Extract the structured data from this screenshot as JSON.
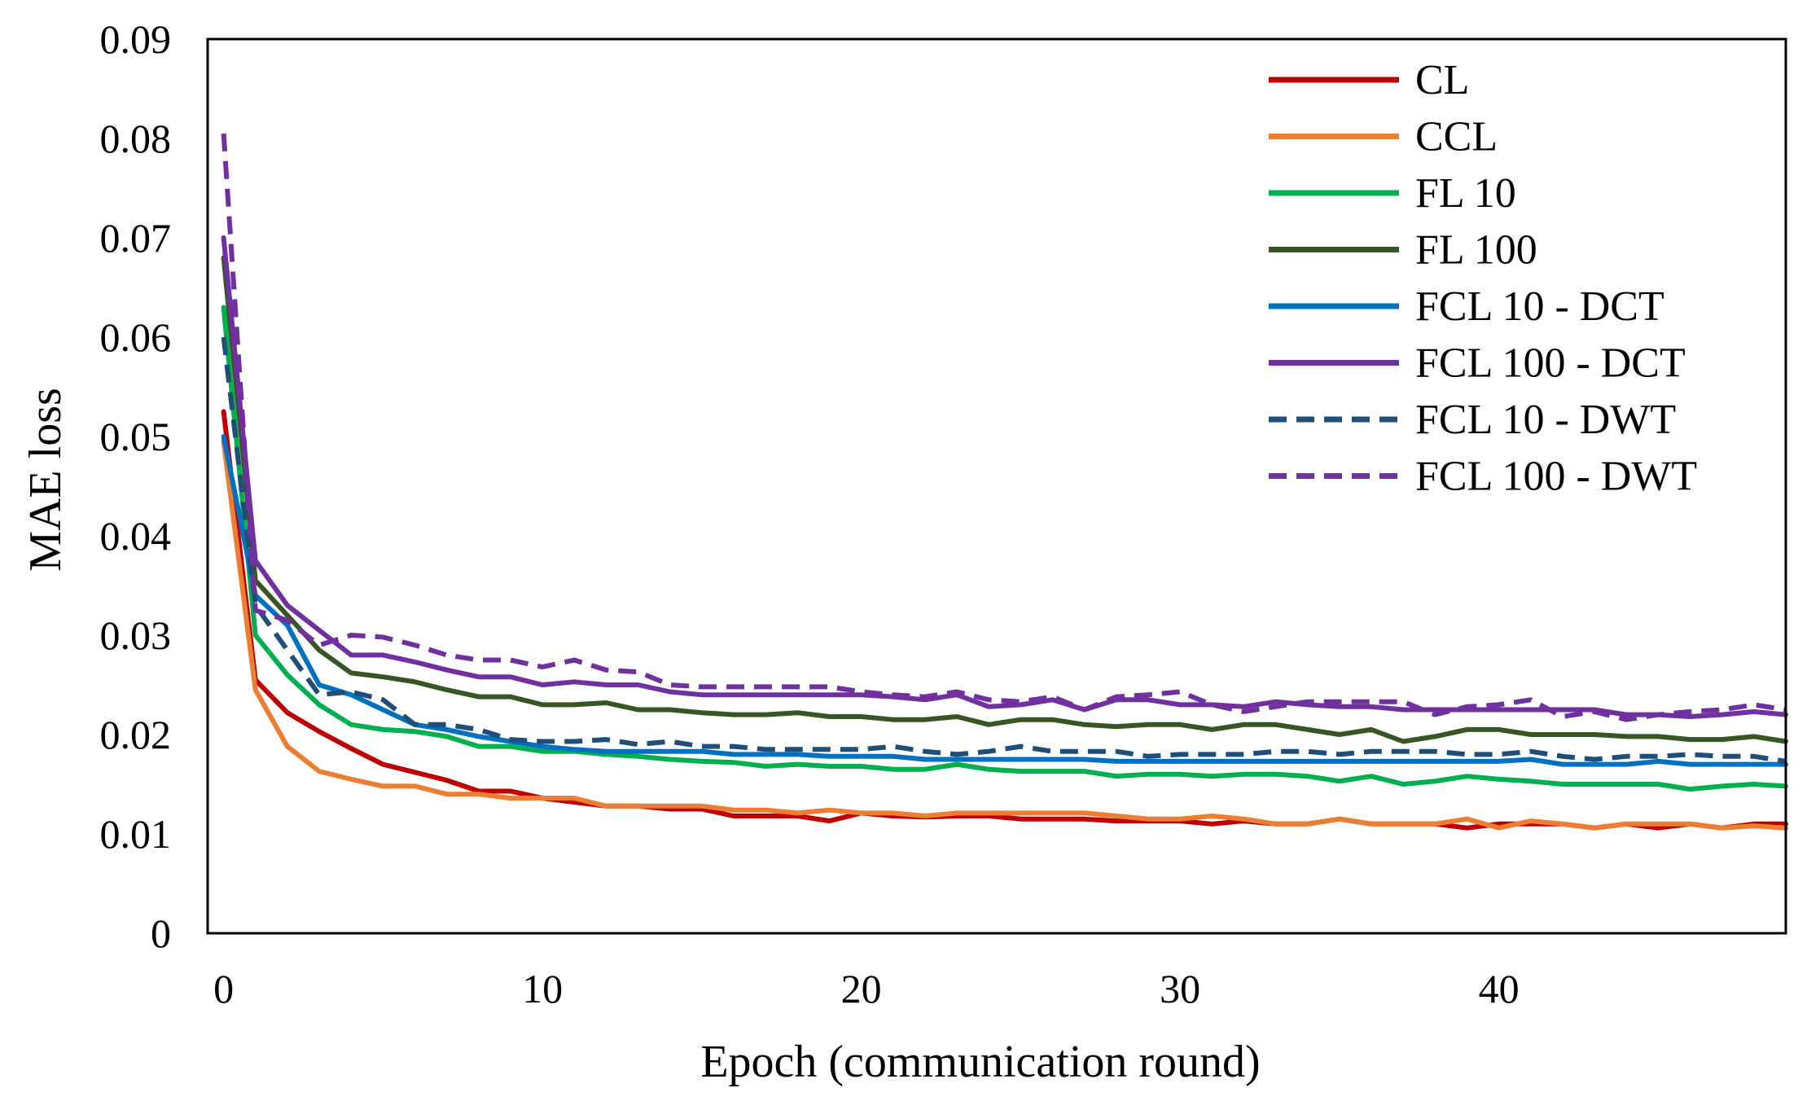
{
  "chart_data": {
    "type": "line",
    "title": "",
    "xlabel": "Epoch (communication  round)",
    "ylabel": "MAE loss",
    "xlim": [
      -0.5,
      49
    ],
    "ylim": [
      0,
      0.09
    ],
    "xticks": [
      0,
      10,
      20,
      30,
      40
    ],
    "xtick_labels": [
      "0",
      "10",
      "20",
      "30",
      "40"
    ],
    "yticks": [
      0,
      0.01,
      0.02,
      0.03,
      0.04,
      0.05,
      0.06,
      0.07,
      0.08,
      0.09
    ],
    "ytick_labels": [
      "0",
      "0.01",
      "0.02",
      "0.03",
      "0.04",
      "0.05",
      "0.06",
      "0.07",
      "0.08",
      "0.09"
    ],
    "grid": false,
    "legend_position": "top-right",
    "series": [
      {
        "name": "CL",
        "color": "#C00000",
        "dash": "solid",
        "values": [
          0.0525,
          0.0255,
          0.0222,
          0.0203,
          0.0186,
          0.017,
          0.0162,
          0.0154,
          0.0143,
          0.0143,
          0.0136,
          0.0132,
          0.0128,
          0.0128,
          0.0125,
          0.0125,
          0.0118,
          0.0118,
          0.0118,
          0.0113,
          0.0121,
          0.0118,
          0.0117,
          0.0118,
          0.0118,
          0.0115,
          0.0115,
          0.0115,
          0.0113,
          0.0113,
          0.0113,
          0.011,
          0.0113,
          0.011,
          0.011,
          0.0115,
          0.011,
          0.011,
          0.011,
          0.0106,
          0.011,
          0.011,
          0.011,
          0.0106,
          0.011,
          0.0106,
          0.011,
          0.0106,
          0.011,
          0.011
        ]
      },
      {
        "name": "CCL",
        "color": "#ED7D31",
        "dash": "solid",
        "values": [
          0.0495,
          0.0245,
          0.0188,
          0.0163,
          0.0155,
          0.0148,
          0.0148,
          0.014,
          0.014,
          0.0136,
          0.0136,
          0.0136,
          0.0128,
          0.0128,
          0.0128,
          0.0128,
          0.0124,
          0.0124,
          0.0121,
          0.0124,
          0.0121,
          0.0121,
          0.0118,
          0.0121,
          0.0121,
          0.0121,
          0.0121,
          0.0121,
          0.0118,
          0.0115,
          0.0115,
          0.0118,
          0.0115,
          0.011,
          0.011,
          0.0115,
          0.011,
          0.011,
          0.011,
          0.0115,
          0.0106,
          0.0113,
          0.011,
          0.0106,
          0.011,
          0.011,
          0.011,
          0.0106,
          0.0108,
          0.0106
        ]
      },
      {
        "name": "FL 10",
        "color": "#00B050",
        "dash": "solid",
        "values": [
          0.063,
          0.03,
          0.026,
          0.023,
          0.021,
          0.0205,
          0.0203,
          0.0198,
          0.0188,
          0.0188,
          0.0183,
          0.0183,
          0.018,
          0.0178,
          0.0175,
          0.0173,
          0.0172,
          0.0168,
          0.017,
          0.0168,
          0.0168,
          0.0165,
          0.0165,
          0.017,
          0.0165,
          0.0163,
          0.0163,
          0.0163,
          0.0158,
          0.016,
          0.016,
          0.0158,
          0.016,
          0.016,
          0.0158,
          0.0153,
          0.0158,
          0.015,
          0.0153,
          0.0158,
          0.0155,
          0.0153,
          0.015,
          0.015,
          0.015,
          0.015,
          0.0145,
          0.0148,
          0.015,
          0.0148
        ]
      },
      {
        "name": "FL 100",
        "color": "#375623",
        "dash": "solid",
        "values": [
          0.068,
          0.0355,
          0.032,
          0.0285,
          0.0262,
          0.0258,
          0.0253,
          0.0245,
          0.0238,
          0.0238,
          0.023,
          0.023,
          0.0232,
          0.0225,
          0.0225,
          0.0222,
          0.022,
          0.022,
          0.0222,
          0.0218,
          0.0218,
          0.0215,
          0.0215,
          0.0218,
          0.021,
          0.0215,
          0.0215,
          0.021,
          0.0208,
          0.021,
          0.021,
          0.0205,
          0.021,
          0.021,
          0.0205,
          0.02,
          0.0205,
          0.0193,
          0.0198,
          0.0205,
          0.0205,
          0.02,
          0.02,
          0.02,
          0.0198,
          0.0198,
          0.0195,
          0.0195,
          0.0198,
          0.0193
        ]
      },
      {
        "name": "FCL 10 - DCT",
        "color": "#0070C0",
        "dash": "solid",
        "values": [
          0.05,
          0.034,
          0.031,
          0.025,
          0.024,
          0.0225,
          0.021,
          0.0205,
          0.0198,
          0.0193,
          0.0188,
          0.0185,
          0.0183,
          0.0183,
          0.0183,
          0.0183,
          0.018,
          0.018,
          0.018,
          0.0178,
          0.0178,
          0.0178,
          0.0175,
          0.0175,
          0.0175,
          0.0175,
          0.0175,
          0.0175,
          0.0173,
          0.0173,
          0.0173,
          0.0173,
          0.0173,
          0.0173,
          0.0173,
          0.0173,
          0.0173,
          0.0173,
          0.0173,
          0.0173,
          0.0173,
          0.0175,
          0.017,
          0.017,
          0.017,
          0.0173,
          0.017,
          0.017,
          0.017,
          0.017
        ]
      },
      {
        "name": "FCL 100 - DCT",
        "color": "#7030A0",
        "dash": "solid",
        "values": [
          0.07,
          0.0375,
          0.033,
          0.0305,
          0.028,
          0.028,
          0.0273,
          0.0265,
          0.0258,
          0.0258,
          0.025,
          0.0253,
          0.025,
          0.025,
          0.0243,
          0.024,
          0.024,
          0.024,
          0.024,
          0.024,
          0.024,
          0.0238,
          0.0235,
          0.024,
          0.0228,
          0.023,
          0.0235,
          0.0225,
          0.0235,
          0.0235,
          0.023,
          0.023,
          0.0228,
          0.0233,
          0.023,
          0.0228,
          0.0228,
          0.0225,
          0.0225,
          0.0225,
          0.0225,
          0.0225,
          0.0225,
          0.0225,
          0.022,
          0.022,
          0.0218,
          0.022,
          0.0223,
          0.022
        ]
      },
      {
        "name": "FCL 10 - DWT",
        "color": "#1F4E79",
        "dash": "dashed",
        "values": [
          0.06,
          0.033,
          0.0285,
          0.024,
          0.0243,
          0.0235,
          0.021,
          0.021,
          0.0205,
          0.0195,
          0.0193,
          0.0193,
          0.0195,
          0.019,
          0.0193,
          0.0188,
          0.0188,
          0.0185,
          0.0185,
          0.0185,
          0.0185,
          0.0188,
          0.0183,
          0.018,
          0.0183,
          0.0188,
          0.0183,
          0.0183,
          0.0183,
          0.0178,
          0.018,
          0.018,
          0.018,
          0.0183,
          0.0183,
          0.018,
          0.0183,
          0.0183,
          0.0183,
          0.018,
          0.018,
          0.0183,
          0.0178,
          0.0175,
          0.0178,
          0.0178,
          0.018,
          0.0178,
          0.0178,
          0.0173
        ]
      },
      {
        "name": "FCL 100 - DWT",
        "color": "#7030A0",
        "dash": "dashed",
        "values": [
          0.0805,
          0.0325,
          0.0315,
          0.029,
          0.03,
          0.0298,
          0.029,
          0.028,
          0.0275,
          0.0275,
          0.0268,
          0.0275,
          0.0265,
          0.0263,
          0.025,
          0.0248,
          0.0248,
          0.0248,
          0.0248,
          0.0248,
          0.0243,
          0.024,
          0.0238,
          0.0243,
          0.0235,
          0.0233,
          0.0238,
          0.0225,
          0.0238,
          0.024,
          0.0243,
          0.023,
          0.0223,
          0.0228,
          0.0233,
          0.0233,
          0.0233,
          0.0233,
          0.022,
          0.0228,
          0.023,
          0.0235,
          0.0218,
          0.0223,
          0.0215,
          0.022,
          0.0223,
          0.0225,
          0.023,
          0.0225
        ]
      }
    ]
  }
}
